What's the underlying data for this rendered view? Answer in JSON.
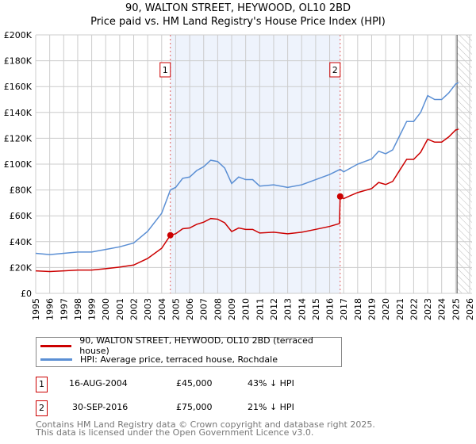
{
  "chart_data": {
    "type": "line",
    "title": "90, WALTON STREET, HEYWOOD, OL10 2BD",
    "subtitle": "Price paid vs. HM Land Registry's House Price Index (HPI)",
    "xlim": [
      1995,
      2026
    ],
    "ylim": [
      0,
      200000
    ],
    "x_ticks": [
      "1995",
      "1996",
      "1997",
      "1998",
      "1999",
      "2000",
      "2001",
      "2002",
      "2003",
      "2004",
      "2005",
      "2006",
      "2007",
      "2008",
      "2009",
      "2010",
      "2011",
      "2012",
      "2013",
      "2014",
      "2015",
      "2016",
      "2017",
      "2018",
      "2019",
      "2020",
      "2021",
      "2022",
      "2023",
      "2024",
      "2025",
      "2026"
    ],
    "y_ticks": [
      {
        "v": 0,
        "label": "£0"
      },
      {
        "v": 20000,
        "label": "£20K"
      },
      {
        "v": 40000,
        "label": "£40K"
      },
      {
        "v": 60000,
        "label": "£60K"
      },
      {
        "v": 80000,
        "label": "£80K"
      },
      {
        "v": 100000,
        "label": "£100K"
      },
      {
        "v": 120000,
        "label": "£120K"
      },
      {
        "v": 140000,
        "label": "£140K"
      },
      {
        "v": 160000,
        "label": "£160K"
      },
      {
        "v": 180000,
        "label": "£180K"
      },
      {
        "v": 200000,
        "label": "£200K"
      }
    ],
    "grid": true,
    "shaded_range": [
      2004.62,
      2016.75
    ],
    "hatched_from": 2025.1,
    "series": [
      {
        "name": "90, WALTON STREET, HEYWOOD, OL10 2BD (terraced house)",
        "color": "#cc0000",
        "x": [
          1995,
          1996,
          1997,
          1998,
          1999,
          2000,
          2001,
          2002,
          2003,
          2004,
          2004.62,
          2005,
          2005.5,
          2006,
          2006.5,
          2007,
          2007.5,
          2008,
          2008.5,
          2009,
          2009.5,
          2010,
          2010.5,
          2011,
          2012,
          2013,
          2014,
          2015,
          2016,
          2016.7,
          2016.75,
          2017,
          2017.5,
          2018,
          2019,
          2019.5,
          2020,
          2020.5,
          2021,
          2021.5,
          2022,
          2022.5,
          2023,
          2023.5,
          2024,
          2024.5,
          2025,
          2025.2
        ],
        "y": [
          17400,
          16900,
          17400,
          18000,
          18000,
          19100,
          20300,
          21900,
          27000,
          34900,
          45000,
          46100,
          50000,
          50600,
          53400,
          55100,
          57900,
          57400,
          54600,
          47800,
          50600,
          49500,
          49500,
          46700,
          47300,
          46100,
          47300,
          49500,
          51800,
          54000,
          75000,
          73300,
          75700,
          78000,
          81100,
          85800,
          84200,
          86600,
          95200,
          103700,
          103700,
          109200,
          119300,
          117000,
          117000,
          121000,
          126400,
          127000
        ]
      },
      {
        "name": "HPI: Average price, terraced house, Rochdale",
        "color": "#5b8fd4",
        "x": [
          1995,
          1996,
          1997,
          1998,
          1999,
          2000,
          2001,
          2002,
          2003,
          2004,
          2004.62,
          2005,
          2005.5,
          2006,
          2006.5,
          2007,
          2007.5,
          2008,
          2008.5,
          2009,
          2009.5,
          2010,
          2010.5,
          2011,
          2012,
          2013,
          2014,
          2015,
          2016,
          2016.75,
          2017,
          2017.5,
          2018,
          2019,
          2019.5,
          2020,
          2020.5,
          2021,
          2021.5,
          2022,
          2022.5,
          2023,
          2023.5,
          2024,
          2024.5,
          2025,
          2025.2
        ],
        "y": [
          31000,
          30000,
          31000,
          32000,
          32000,
          34000,
          36000,
          39000,
          48000,
          62000,
          80000,
          82000,
          89000,
          90000,
          95000,
          98000,
          103000,
          102000,
          97000,
          85000,
          90000,
          88000,
          88000,
          83000,
          84000,
          82000,
          84000,
          88000,
          92000,
          96000,
          94000,
          97000,
          100000,
          104000,
          110000,
          108000,
          111000,
          122000,
          133000,
          133000,
          140000,
          153000,
          150000,
          150000,
          155000,
          162000,
          163000
        ]
      }
    ],
    "sales": [
      {
        "id": "1",
        "x": 2004.62,
        "y": 45000,
        "date": "16-AUG-2004",
        "price": "£45,000",
        "hpi": "43% ↓ HPI"
      },
      {
        "id": "2",
        "x": 2016.75,
        "y": 75000,
        "date": "30-SEP-2016",
        "price": "£75,000",
        "hpi": "21% ↓ HPI"
      }
    ],
    "legend_placement": "below"
  },
  "footer": {
    "line1": "Contains HM Land Registry data © Crown copyright and database right 2025.",
    "line2": "This data is licensed under the Open Government Licence v3.0."
  }
}
